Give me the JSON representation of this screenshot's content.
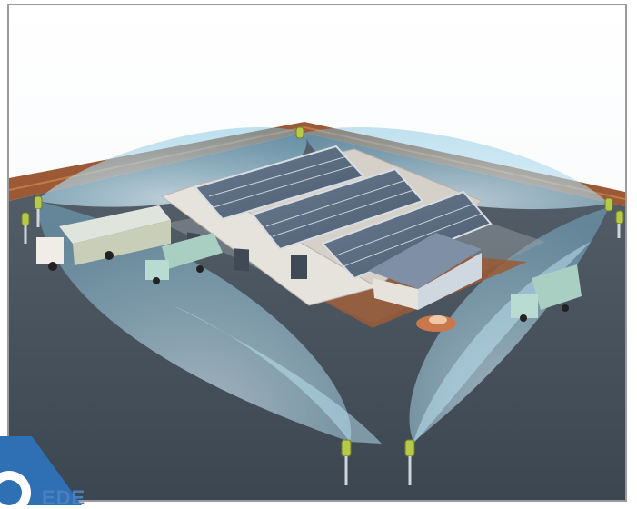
{
  "illustration": {
    "subject": "warehouse-perimeter-surveillance",
    "colors": {
      "ground": "#3f4a56",
      "coverage": "#9fd4ea",
      "roof_panel": "#5a6a80",
      "wall": "#e6e2dc",
      "fence": "#9b5a35"
    }
  },
  "logo": {
    "text": "EDE",
    "color": "#4a7fc0"
  }
}
